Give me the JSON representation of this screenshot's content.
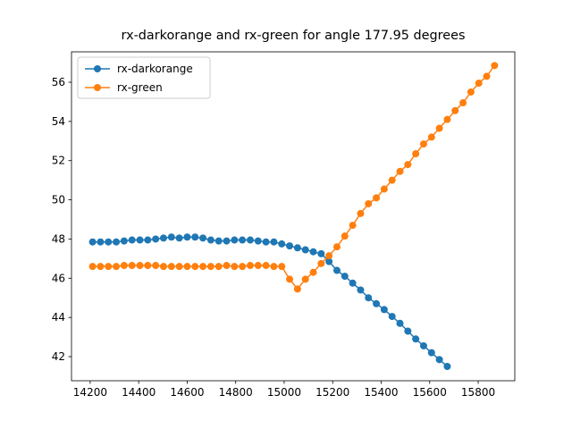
{
  "chart_data": {
    "type": "line",
    "title": "rx-darkorange and rx-green for angle 177.95 degrees",
    "series": [
      {
        "name": "rx-darkorange",
        "color": "#1f77b4",
        "x": [
          14210,
          14242.5,
          14275,
          14307.5,
          14340,
          14372.5,
          14405,
          14437.5,
          14470,
          14502.5,
          14535,
          14567.5,
          14600,
          14632.5,
          14665,
          14697.5,
          14730,
          14762.5,
          14795,
          14827.5,
          14860,
          14892.5,
          14925,
          14957.5,
          14990,
          15022.5,
          15055,
          15087.5,
          15120,
          15152.5,
          15185,
          15217.5,
          15250,
          15282.5,
          15315,
          15347.5,
          15380,
          15412.5,
          15445,
          15477.5,
          15510,
          15542.5,
          15575,
          15607.5,
          15640,
          15672.5
        ],
        "values": [
          47.85,
          47.85,
          47.85,
          47.85,
          47.9,
          47.95,
          47.95,
          47.95,
          48.0,
          48.05,
          48.1,
          48.05,
          48.1,
          48.1,
          48.05,
          47.95,
          47.9,
          47.9,
          47.95,
          47.95,
          47.95,
          47.9,
          47.85,
          47.85,
          47.75,
          47.65,
          47.55,
          47.45,
          47.35,
          47.25,
          46.85,
          46.4,
          46.1,
          45.75,
          45.4,
          45.0,
          44.7,
          44.4,
          44.05,
          43.7,
          43.3,
          42.9,
          42.55,
          42.2,
          41.85,
          41.5
        ]
      },
      {
        "name": "rx-green",
        "color": "#ff7f0e",
        "x": [
          14210,
          14242.5,
          14275,
          14307.5,
          14340,
          14372.5,
          14405,
          14437.5,
          14470,
          14502.5,
          14535,
          14567.5,
          14600,
          14632.5,
          14665,
          14697.5,
          14730,
          14762.5,
          14795,
          14827.5,
          14860,
          14892.5,
          14925,
          14957.5,
          14990,
          15022.5,
          15055,
          15087.5,
          15120,
          15152.5,
          15185,
          15217.5,
          15250,
          15282.5,
          15315,
          15347.5,
          15380,
          15412.5,
          15445,
          15477.5,
          15510,
          15542.5,
          15575,
          15607.5,
          15640,
          15672.5,
          15705,
          15737.5,
          15770,
          15802.5,
          15835,
          15867.5
        ],
        "values": [
          46.6,
          46.6,
          46.6,
          46.6,
          46.65,
          46.65,
          46.65,
          46.65,
          46.65,
          46.6,
          46.6,
          46.6,
          46.6,
          46.6,
          46.6,
          46.6,
          46.6,
          46.65,
          46.6,
          46.6,
          46.65,
          46.65,
          46.65,
          46.6,
          46.6,
          45.95,
          45.45,
          45.95,
          46.3,
          46.75,
          47.15,
          47.6,
          48.15,
          48.7,
          49.3,
          49.8,
          50.1,
          50.55,
          51.0,
          51.45,
          51.8,
          52.35,
          52.85,
          53.2,
          53.65,
          54.1,
          54.55,
          54.95,
          55.5,
          55.95,
          56.3,
          56.85
        ]
      }
    ],
    "xlim": [
      14123,
      15951
    ],
    "ylim": [
      40.77,
      57.55
    ],
    "xticks": [
      14200,
      14400,
      14600,
      14800,
      15000,
      15200,
      15400,
      15600,
      15800
    ],
    "yticks": [
      42,
      44,
      46,
      48,
      50,
      52,
      54,
      56
    ],
    "legend": "upper left"
  }
}
